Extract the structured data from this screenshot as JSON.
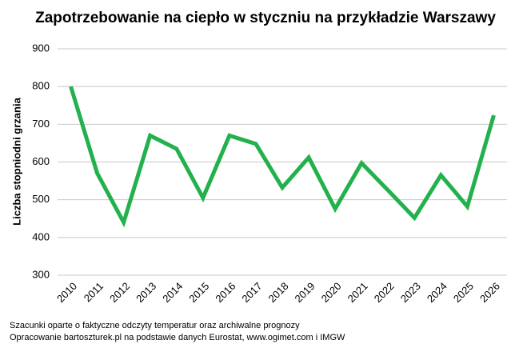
{
  "chart_data": {
    "type": "line",
    "title": "Zapotrzebowanie na ciepło w styczniu na przykładzie Warszawy",
    "y_label": "Liczba stopniodni grzania",
    "categories": [
      "2010",
      "2011",
      "2012",
      "2013",
      "2014",
      "2015",
      "2016",
      "2017",
      "2018",
      "2019",
      "2020",
      "2021",
      "2022",
      "2023",
      "2024",
      "2025",
      "2026"
    ],
    "series": [
      {
        "name": "Liczba stopniodni grzania",
        "color": "#22b14c",
        "values": [
          800,
          570,
          440,
          670,
          635,
          505,
          670,
          648,
          532,
          612,
          476,
          597,
          525,
          452,
          565,
          482,
          724
        ]
      }
    ],
    "ylim": [
      300,
      900
    ],
    "yticks": [
      300,
      400,
      500,
      600,
      700,
      800,
      900
    ],
    "grid": true,
    "notes": [
      "Szacunki oparte o faktyczne odczyty temperatur oraz archiwalne prognozy",
      "Opracowanie bartoszturek.pl na podstawie danych Eurostat, www.ogimet.com i IMGW"
    ]
  }
}
